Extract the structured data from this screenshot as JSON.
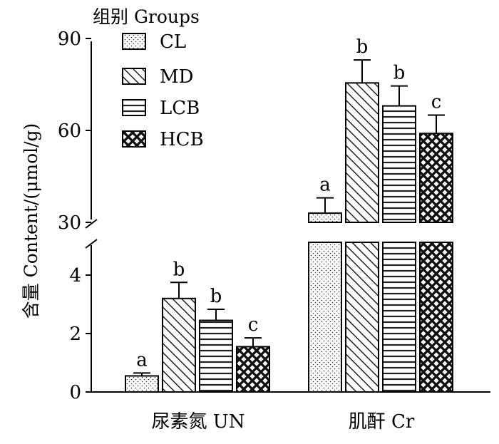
{
  "chart_data": {
    "type": "bar",
    "title": "",
    "ylabel": "含量 Content/(μmol/g)",
    "legend_title": "组别 Groups",
    "legend_position": "top-left",
    "categories": [
      "尿素氮 UN",
      "肌酐  Cr"
    ],
    "axis_break": true,
    "lower_segment": {
      "ylim": [
        0,
        5
      ],
      "ticks": [
        "0",
        "2",
        "4"
      ],
      "applies_to": "尿素氮 UN"
    },
    "upper_segment": {
      "ylim": [
        30,
        90
      ],
      "ticks": [
        "30",
        "60",
        "90"
      ],
      "applies_to": "肌酐  Cr"
    },
    "series": [
      {
        "name": "CL",
        "values": [
          0.55,
          33.0
        ],
        "errors": [
          0.1,
          5.0
        ],
        "letters": [
          "a",
          "a"
        ],
        "pattern": "dots"
      },
      {
        "name": "MD",
        "values": [
          3.2,
          75.5
        ],
        "errors": [
          0.55,
          7.5
        ],
        "letters": [
          "b",
          "b"
        ],
        "pattern": "diagonal"
      },
      {
        "name": "LCB",
        "values": [
          2.45,
          68.0
        ],
        "errors": [
          0.38,
          6.5
        ],
        "letters": [
          "b",
          "b"
        ],
        "pattern": "horizontal"
      },
      {
        "name": "HCB",
        "values": [
          1.55,
          59.0
        ],
        "errors": [
          0.3,
          6.0
        ],
        "letters": [
          "c",
          "c"
        ],
        "pattern": "crosshatch"
      }
    ]
  }
}
